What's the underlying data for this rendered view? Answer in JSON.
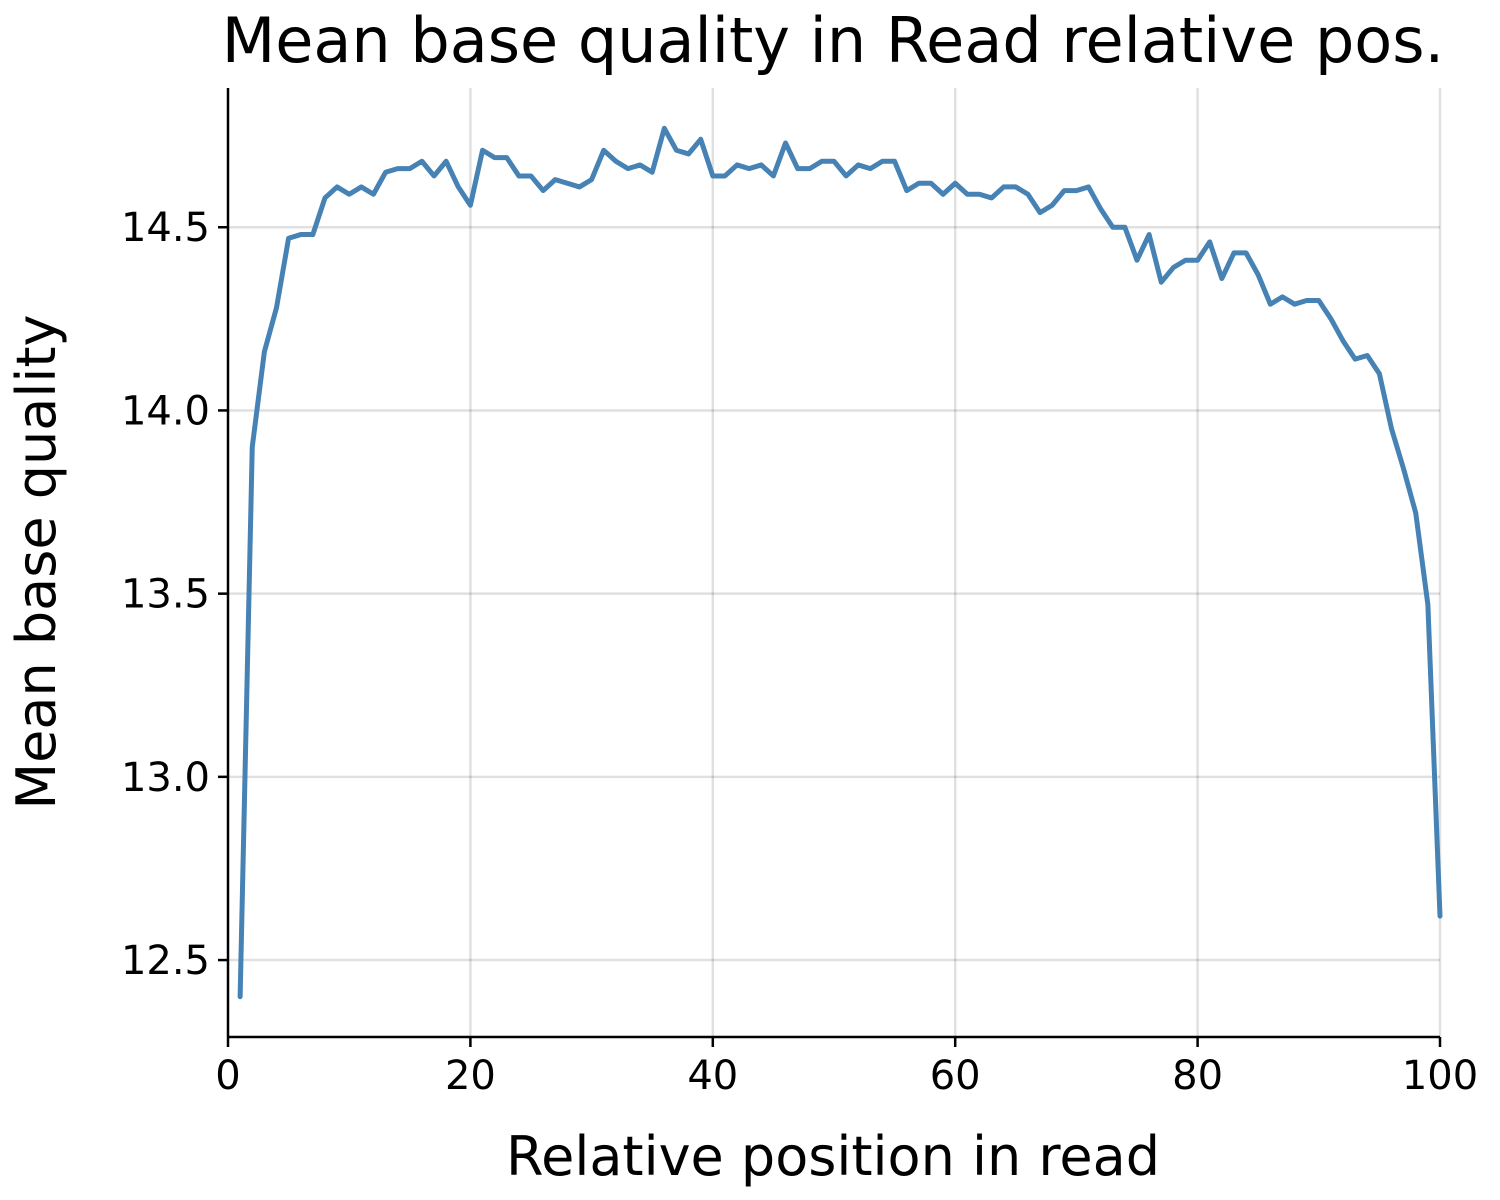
{
  "chart_data": {
    "type": "line",
    "title": "Mean base quality in Read relative pos.",
    "xlabel": "Relative position in read",
    "ylabel": "Mean base quality",
    "xlim": [
      0,
      100
    ],
    "ylim": [
      12.29,
      14.88
    ],
    "xticks": [
      0,
      20,
      40,
      60,
      80,
      100
    ],
    "yticks": [
      12.5,
      13.0,
      13.5,
      14.0,
      14.5
    ],
    "xtick_labels": [
      "0",
      "20",
      "40",
      "60",
      "80",
      "100"
    ],
    "ytick_labels": [
      "12.5",
      "13.0",
      "13.5",
      "14.0",
      "14.5"
    ],
    "grid": true,
    "color": "#4682b4",
    "series": [
      {
        "x": [
          1,
          2,
          3,
          4,
          5,
          6,
          7,
          8,
          9,
          10,
          11,
          12,
          13,
          14,
          15,
          16,
          17,
          18,
          19,
          20,
          21,
          22,
          23,
          24,
          25,
          26,
          27,
          28,
          29,
          30,
          31,
          32,
          33,
          34,
          35,
          36,
          37,
          38,
          39,
          40,
          41,
          42,
          43,
          44,
          45,
          46,
          47,
          48,
          49,
          50,
          51,
          52,
          53,
          54,
          55,
          56,
          57,
          58,
          59,
          60,
          61,
          62,
          63,
          64,
          65,
          66,
          67,
          68,
          69,
          70,
          71,
          72,
          73,
          74,
          75,
          76,
          77,
          78,
          79,
          80,
          81,
          82,
          83,
          84,
          85,
          86,
          87,
          88,
          89,
          90,
          91,
          92,
          93,
          94,
          95,
          96,
          97,
          98,
          99,
          100
        ],
        "values": [
          12.4,
          13.9,
          14.16,
          14.28,
          14.47,
          14.48,
          14.48,
          14.58,
          14.61,
          14.59,
          14.61,
          14.59,
          14.65,
          14.66,
          14.66,
          14.68,
          14.64,
          14.68,
          14.61,
          14.56,
          14.71,
          14.69,
          14.69,
          14.64,
          14.64,
          14.6,
          14.63,
          14.62,
          14.61,
          14.63,
          14.71,
          14.68,
          14.66,
          14.67,
          14.65,
          14.77,
          14.71,
          14.7,
          14.74,
          14.64,
          14.64,
          14.67,
          14.66,
          14.67,
          14.64,
          14.73,
          14.66,
          14.66,
          14.68,
          14.68,
          14.64,
          14.67,
          14.66,
          14.68,
          14.68,
          14.6,
          14.62,
          14.62,
          14.59,
          14.62,
          14.59,
          14.59,
          14.58,
          14.61,
          14.61,
          14.59,
          14.54,
          14.56,
          14.6,
          14.6,
          14.61,
          14.55,
          14.5,
          14.5,
          14.41,
          14.48,
          14.35,
          14.39,
          14.41,
          14.41,
          14.46,
          14.36,
          14.43,
          14.43,
          14.37,
          14.29,
          14.31,
          14.29,
          14.3,
          14.3,
          14.25,
          14.19,
          14.14,
          14.15,
          14.1,
          13.95,
          13.84,
          13.72,
          13.47,
          12.62
        ]
      }
    ]
  }
}
